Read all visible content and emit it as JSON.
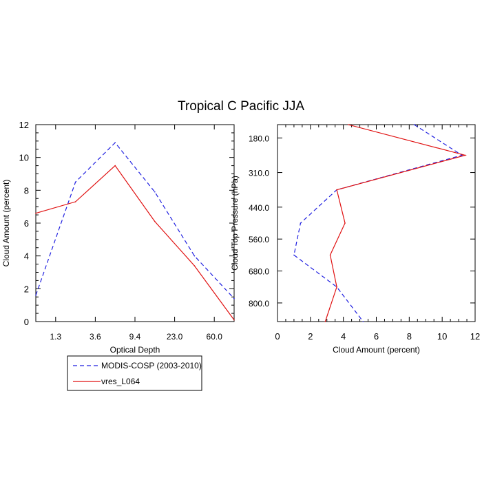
{
  "title": "Tropical C Pacific JJA",
  "colors": {
    "modis": "#1f1fe0",
    "model": "#e01010",
    "axis": "#000000"
  },
  "legend": {
    "entries": [
      {
        "label": "MODIS-COSP (2003-2010)",
        "series": "modis"
      },
      {
        "label": "vres_L064",
        "series": "model"
      }
    ]
  },
  "chart_data": [
    {
      "type": "line",
      "xlabel": "Optical Depth",
      "ylabel": "Cloud Amount (percent)",
      "xticks": [
        "1.3",
        "3.6",
        "9.4",
        "23.0",
        "60.0"
      ],
      "xlim": [
        0,
        5
      ],
      "ylim": [
        0,
        12
      ],
      "yticks": [
        "0",
        "2",
        "4",
        "6",
        "8",
        "10",
        "12"
      ],
      "ytick_values": [
        0,
        2,
        4,
        6,
        8,
        10,
        12
      ],
      "x": [
        0,
        1,
        2,
        3,
        4,
        5
      ],
      "series": [
        {
          "name": "MODIS-COSP (2003-2010)",
          "key": "modis",
          "dash": true,
          "values": [
            1.6,
            8.5,
            10.9,
            7.9,
            4.0,
            1.4
          ]
        },
        {
          "name": "vres_L064",
          "key": "model",
          "dash": false,
          "values": [
            6.6,
            7.3,
            9.5,
            6.1,
            3.4,
            0.1
          ]
        }
      ]
    },
    {
      "type": "line",
      "xlabel": "Cloud Amount (percent)",
      "ylabel": "Cloud Top Pressure (hPa)",
      "xlim": [
        0,
        12
      ],
      "xticks": [
        "0",
        "2",
        "4",
        "6",
        "8",
        "10",
        "12"
      ],
      "xtick_values": [
        0,
        2,
        4,
        6,
        8,
        10,
        12
      ],
      "ylim": [
        130,
        870
      ],
      "yticks": [
        "180.0",
        "310.0",
        "440.0",
        "560.0",
        "680.0",
        "800.0"
      ],
      "ytick_values": [
        180,
        310,
        440,
        560,
        680,
        800
      ],
      "pressure": [
        130,
        245,
        375,
        500,
        620,
        740,
        870
      ],
      "series": [
        {
          "name": "MODIS-COSP (2003-2010)",
          "key": "modis",
          "dash": true,
          "values": [
            8.3,
            11.2,
            3.6,
            1.4,
            1.0,
            3.6,
            5.2
          ]
        },
        {
          "name": "vres_L064",
          "key": "model",
          "dash": false,
          "values": [
            4.3,
            11.4,
            3.6,
            4.1,
            3.2,
            3.6,
            2.9
          ]
        }
      ]
    }
  ]
}
